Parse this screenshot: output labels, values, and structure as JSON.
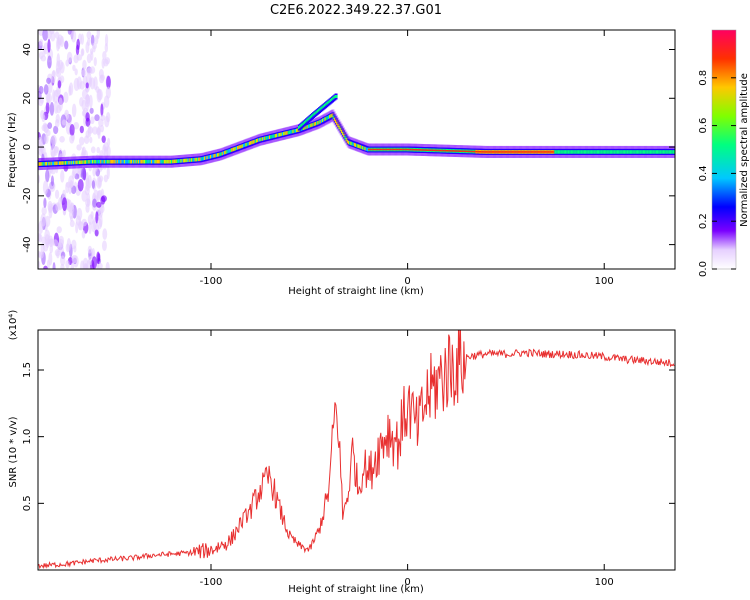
{
  "title": "C2E6.2022.349.22.37.G01",
  "colors": {
    "snr_line": "#e83030",
    "axis": "#000000",
    "background": "#ffffff"
  },
  "chart_data": [
    {
      "type": "heatmap",
      "xlabel": "Height of straight line (km)",
      "ylabel": "Frequency (Hz)",
      "xlim": [
        -188,
        136
      ],
      "ylim": [
        -50,
        48
      ],
      "x_ticks": [
        -100,
        0,
        100
      ],
      "y_ticks": [
        -40,
        -20,
        0,
        20,
        40
      ],
      "colorbar": {
        "label": "Normalized spectral amplitude",
        "range": [
          0,
          1
        ],
        "ticks": [
          "0.0",
          "0.2",
          "0.4",
          "0.6",
          "0.8"
        ]
      },
      "features": [
        {
          "name": "low_scatter",
          "x_range": [
            -188,
            -160
          ],
          "freq_range": [
            -50,
            48
          ]
        },
        {
          "name": "main_trace",
          "points": [
            [
              -188,
              -7
            ],
            [
              -160,
              -6
            ],
            [
              -140,
              -6
            ],
            [
              -120,
              -6
            ],
            [
              -105,
              -5
            ],
            [
              -95,
              -3
            ],
            [
              -85,
              0
            ],
            [
              -75,
              3
            ],
            [
              -65,
              5
            ],
            [
              -55,
              7
            ],
            [
              -45,
              10
            ],
            [
              -38,
              13
            ],
            [
              -30,
              2
            ],
            [
              -20,
              -1
            ],
            [
              0,
              -1
            ],
            [
              40,
              -2
            ],
            [
              136,
              -2
            ]
          ]
        },
        {
          "name": "upper_branch",
          "points": [
            [
              -55,
              8
            ],
            [
              -48,
              13
            ],
            [
              -42,
              17
            ],
            [
              -36,
              21
            ]
          ]
        }
      ]
    },
    {
      "type": "line",
      "xlabel": "Height of straight line (km)",
      "ylabel": "SNR (10 * v/v)",
      "y_multiplier": "(x10⁴)",
      "xlim": [
        -188,
        136
      ],
      "ylim": [
        0,
        1.8
      ],
      "x_ticks": [
        -100,
        0,
        100
      ],
      "y_ticks": [
        0.5,
        1.0,
        1.5
      ],
      "series": [
        {
          "x": [
            -188,
            -170,
            -160,
            -150,
            -140,
            -130,
            -120,
            -110,
            -100,
            -90,
            -85,
            -80,
            -75,
            -70,
            -65,
            -60,
            -55,
            -50,
            -45,
            -40,
            -37,
            -35,
            -33,
            -30,
            -28,
            -25,
            -22,
            -20,
            -15,
            -10,
            -5,
            0,
            5,
            10,
            15,
            20,
            25,
            30,
            40,
            50,
            60,
            70,
            80,
            90,
            100,
            110,
            120,
            136
          ],
          "y": [
            0.03,
            0.05,
            0.07,
            0.08,
            0.09,
            0.11,
            0.12,
            0.13,
            0.15,
            0.22,
            0.35,
            0.45,
            0.6,
            0.7,
            0.45,
            0.25,
            0.18,
            0.15,
            0.3,
            0.6,
            1.2,
            1.05,
            0.4,
            0.6,
            0.9,
            0.6,
            0.8,
            0.7,
            0.9,
            1.05,
            0.95,
            1.25,
            1.05,
            1.3,
            1.4,
            1.5,
            1.55,
            1.6,
            1.62,
            1.62,
            1.63,
            1.62,
            1.62,
            1.61,
            1.6,
            1.58,
            1.57,
            1.55
          ]
        }
      ]
    }
  ]
}
